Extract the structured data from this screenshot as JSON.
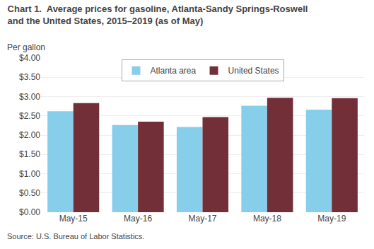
{
  "chart_data": {
    "type": "bar",
    "title": [
      "Chart 1.  Average prices for gasoline, Atlanta-Sandy Springs-Roswell",
      "and the United States, 2015–2019 (as of May)"
    ],
    "ylabel": "Per gallon",
    "annotations": [
      "Source: U.S. Bureau of Labor Statistics."
    ],
    "categories": [
      "May-15",
      "May-16",
      "May-17",
      "May-18",
      "May-19"
    ],
    "series": [
      {
        "name": "Atlanta area",
        "color": "#87CEEB",
        "values": [
          2.62,
          2.26,
          2.21,
          2.76,
          2.66
        ]
      },
      {
        "name": "United States",
        "color": "#722F37",
        "values": [
          2.83,
          2.35,
          2.47,
          2.97,
          2.96
        ]
      }
    ],
    "ylim": [
      0.0,
      4.0
    ],
    "yticks": [
      {
        "value": 0.0,
        "label": "$0.00"
      },
      {
        "value": 0.5,
        "label": "$0.50"
      },
      {
        "value": 1.0,
        "label": "$1.00"
      },
      {
        "value": 1.5,
        "label": "$1.50"
      },
      {
        "value": 2.0,
        "label": "$2.00"
      },
      {
        "value": 2.5,
        "label": "$2.50"
      },
      {
        "value": 3.0,
        "label": "$3.00"
      },
      {
        "value": 3.5,
        "label": "$3.50"
      },
      {
        "value": 4.0,
        "label": "$4.00"
      }
    ],
    "grid": true,
    "legend": "top"
  }
}
